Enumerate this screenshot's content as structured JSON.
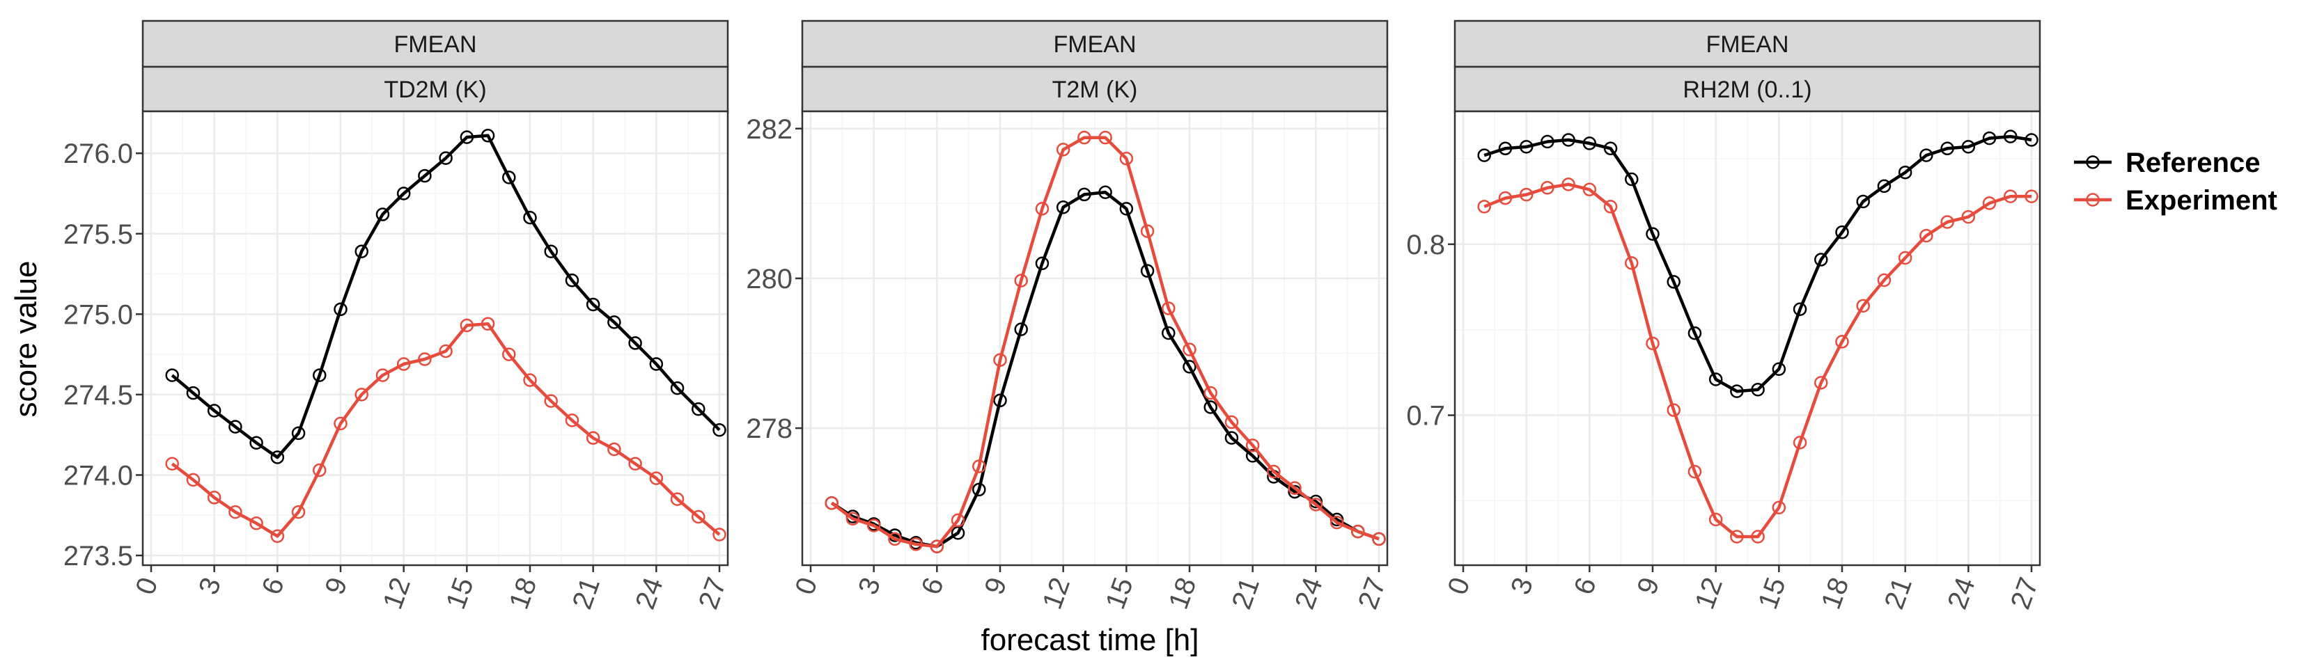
{
  "colors": {
    "reference": "#000000",
    "experiment": "#e64b3c",
    "strip_fill": "#d9d9d9",
    "panel_border": "#333333",
    "grid_major": "#ebebeb",
    "grid_minor": "#f5f5f5"
  },
  "labels": {
    "xlabel": "forecast time [h]",
    "ylabel": "score value"
  },
  "legend": {
    "entries": [
      "Reference",
      "Experiment"
    ],
    "placement": "right"
  },
  "chart_data": [
    {
      "type": "line",
      "strip_top": "FMEAN",
      "strip_bottom": "TD2M (K)",
      "xlabel": "forecast time [h]",
      "ylabel": "score value",
      "xlim": [
        0,
        27
      ],
      "ylim": [
        273.5,
        276.2
      ],
      "xticks": [
        0,
        3,
        6,
        9,
        12,
        15,
        18,
        21,
        24,
        27
      ],
      "xtick_labels": [
        "0",
        "3",
        "6",
        "9",
        "12",
        "15",
        "18",
        "21",
        "24",
        "27"
      ],
      "yticks": [
        273.5,
        274.0,
        274.5,
        275.0,
        275.5,
        276.0
      ],
      "ytick_labels": [
        "273.5",
        "274.0",
        "274.5",
        "275.0",
        "275.5",
        "276.0"
      ],
      "x": [
        1,
        2,
        3,
        4,
        5,
        6,
        7,
        8,
        9,
        10,
        11,
        12,
        13,
        14,
        15,
        16,
        17,
        18,
        19,
        20,
        21,
        22,
        23,
        24,
        25,
        26,
        27
      ],
      "series": [
        {
          "name": "Reference",
          "values": [
            274.62,
            274.51,
            274.4,
            274.3,
            274.2,
            274.11,
            274.26,
            274.62,
            275.03,
            275.39,
            275.62,
            275.75,
            275.86,
            275.97,
            276.1,
            276.11,
            275.85,
            275.6,
            275.39,
            275.21,
            275.06,
            274.95,
            274.82,
            274.69,
            274.54,
            274.41,
            274.28
          ]
        },
        {
          "name": "Experiment",
          "values": [
            274.07,
            273.97,
            273.86,
            273.77,
            273.7,
            273.62,
            273.77,
            274.03,
            274.32,
            274.5,
            274.62,
            274.69,
            274.72,
            274.77,
            274.93,
            274.94,
            274.75,
            274.59,
            274.46,
            274.34,
            274.23,
            274.16,
            274.07,
            273.98,
            273.85,
            273.74,
            273.63
          ]
        }
      ]
    },
    {
      "type": "line",
      "strip_top": "FMEAN",
      "strip_bottom": "T2M (K)",
      "xlabel": "forecast time [h]",
      "ylabel": "score value",
      "xlim": [
        0,
        27
      ],
      "ylim": [
        276.3,
        282.1
      ],
      "xticks": [
        0,
        3,
        6,
        9,
        12,
        15,
        18,
        21,
        24,
        27
      ],
      "xtick_labels": [
        "0",
        "3",
        "6",
        "9",
        "12",
        "15",
        "18",
        "21",
        "24",
        "27"
      ],
      "yticks": [
        278,
        280,
        282
      ],
      "ytick_labels": [
        "278",
        "280",
        "282"
      ],
      "x": [
        1,
        2,
        3,
        4,
        5,
        6,
        7,
        8,
        9,
        10,
        11,
        12,
        13,
        14,
        15,
        16,
        17,
        18,
        19,
        20,
        21,
        22,
        23,
        24,
        25,
        26,
        27
      ],
      "series": [
        {
          "name": "Reference",
          "values": [
            277.0,
            276.82,
            276.72,
            276.57,
            276.47,
            276.42,
            276.6,
            277.18,
            278.37,
            279.32,
            280.2,
            280.95,
            281.12,
            281.15,
            280.93,
            280.1,
            279.27,
            278.82,
            278.28,
            277.87,
            277.63,
            277.35,
            277.15,
            277.02,
            276.78,
            276.62,
            276.52
          ]
        },
        {
          "name": "Experiment",
          "values": [
            277.0,
            276.79,
            276.7,
            276.52,
            276.45,
            276.42,
            276.77,
            277.49,
            278.91,
            279.97,
            280.93,
            281.72,
            281.88,
            281.88,
            281.6,
            280.63,
            279.6,
            279.05,
            278.47,
            278.08,
            277.77,
            277.42,
            277.2,
            276.98,
            276.74,
            276.62,
            276.52
          ]
        }
      ]
    },
    {
      "type": "line",
      "strip_top": "FMEAN",
      "strip_bottom": "RH2M (0..1)",
      "xlabel": "forecast time [h]",
      "ylabel": "score value",
      "xlim": [
        0,
        27
      ],
      "ylim": [
        0.618,
        0.872
      ],
      "xticks": [
        0,
        3,
        6,
        9,
        12,
        15,
        18,
        21,
        24,
        27
      ],
      "xtick_labels": [
        "0",
        "3",
        "6",
        "9",
        "12",
        "15",
        "18",
        "21",
        "24",
        "27"
      ],
      "yticks": [
        0.7,
        0.8
      ],
      "ytick_labels": [
        "0.7",
        "0.8"
      ],
      "x": [
        1,
        2,
        3,
        4,
        5,
        6,
        7,
        8,
        9,
        10,
        11,
        12,
        13,
        14,
        15,
        16,
        17,
        18,
        19,
        20,
        21,
        22,
        23,
        24,
        25,
        26,
        27
      ],
      "series": [
        {
          "name": "Reference",
          "values": [
            0.852,
            0.856,
            0.857,
            0.86,
            0.861,
            0.859,
            0.856,
            0.838,
            0.806,
            0.778,
            0.748,
            0.721,
            0.714,
            0.715,
            0.727,
            0.762,
            0.791,
            0.807,
            0.825,
            0.834,
            0.842,
            0.852,
            0.856,
            0.857,
            0.862,
            0.863,
            0.861
          ]
        },
        {
          "name": "Experiment",
          "values": [
            0.822,
            0.827,
            0.829,
            0.833,
            0.835,
            0.832,
            0.822,
            0.789,
            0.742,
            0.703,
            0.667,
            0.639,
            0.629,
            0.629,
            0.646,
            0.684,
            0.719,
            0.743,
            0.764,
            0.779,
            0.792,
            0.805,
            0.813,
            0.816,
            0.824,
            0.828,
            0.828
          ]
        }
      ]
    }
  ]
}
